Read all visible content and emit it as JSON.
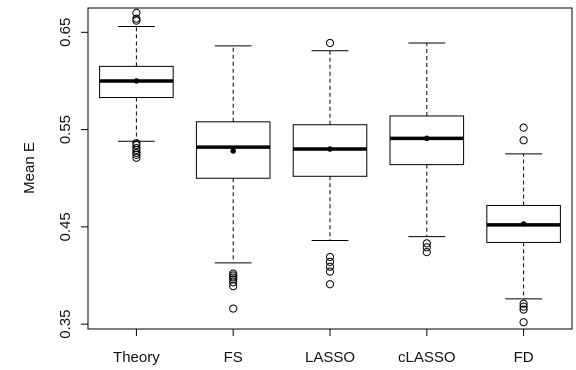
{
  "chart_data": {
    "type": "boxplot",
    "ylabel": "Mean E",
    "ylim": [
      0.345,
      0.675
    ],
    "yticks": [
      0.35,
      0.45,
      0.55,
      0.65
    ],
    "ytick_labels": [
      "0.35",
      "0.45",
      "0.55",
      "0.65"
    ],
    "grid": false,
    "categories": [
      "Theory",
      "FS",
      "LASSO",
      "cLASSO",
      "FD"
    ],
    "boxes": [
      {
        "category": "Theory",
        "whisker_low": 0.538,
        "q1": 0.583,
        "median": 0.6,
        "q3": 0.615,
        "whisker_high": 0.656,
        "mean": 0.6,
        "outliers": [
          0.521,
          0.524,
          0.526,
          0.529,
          0.531,
          0.534,
          0.536,
          0.662,
          0.664,
          0.67
        ]
      },
      {
        "category": "FS",
        "whisker_low": 0.413,
        "q1": 0.5,
        "median": 0.532,
        "q3": 0.558,
        "whisker_high": 0.636,
        "mean": 0.528,
        "outliers": [
          0.366,
          0.389,
          0.393,
          0.396,
          0.398,
          0.4,
          0.402
        ]
      },
      {
        "category": "LASSO",
        "whisker_low": 0.436,
        "q1": 0.502,
        "median": 0.53,
        "q3": 0.555,
        "whisker_high": 0.631,
        "mean": 0.53,
        "outliers": [
          0.391,
          0.404,
          0.409,
          0.414,
          0.419,
          0.639
        ]
      },
      {
        "category": "cLASSO",
        "whisker_low": 0.44,
        "q1": 0.514,
        "median": 0.541,
        "q3": 0.564,
        "whisker_high": 0.639,
        "mean": 0.541,
        "outliers": [
          0.424,
          0.429,
          0.433
        ]
      },
      {
        "category": "FD",
        "whisker_low": 0.376,
        "q1": 0.434,
        "median": 0.452,
        "q3": 0.472,
        "whisker_high": 0.525,
        "mean": 0.453,
        "outliers": [
          0.352,
          0.365,
          0.368,
          0.371,
          0.539,
          0.552
        ]
      }
    ],
    "colors": {
      "line": "#000000",
      "box_fill": "#ffffff",
      "background": "#ffffff"
    }
  }
}
